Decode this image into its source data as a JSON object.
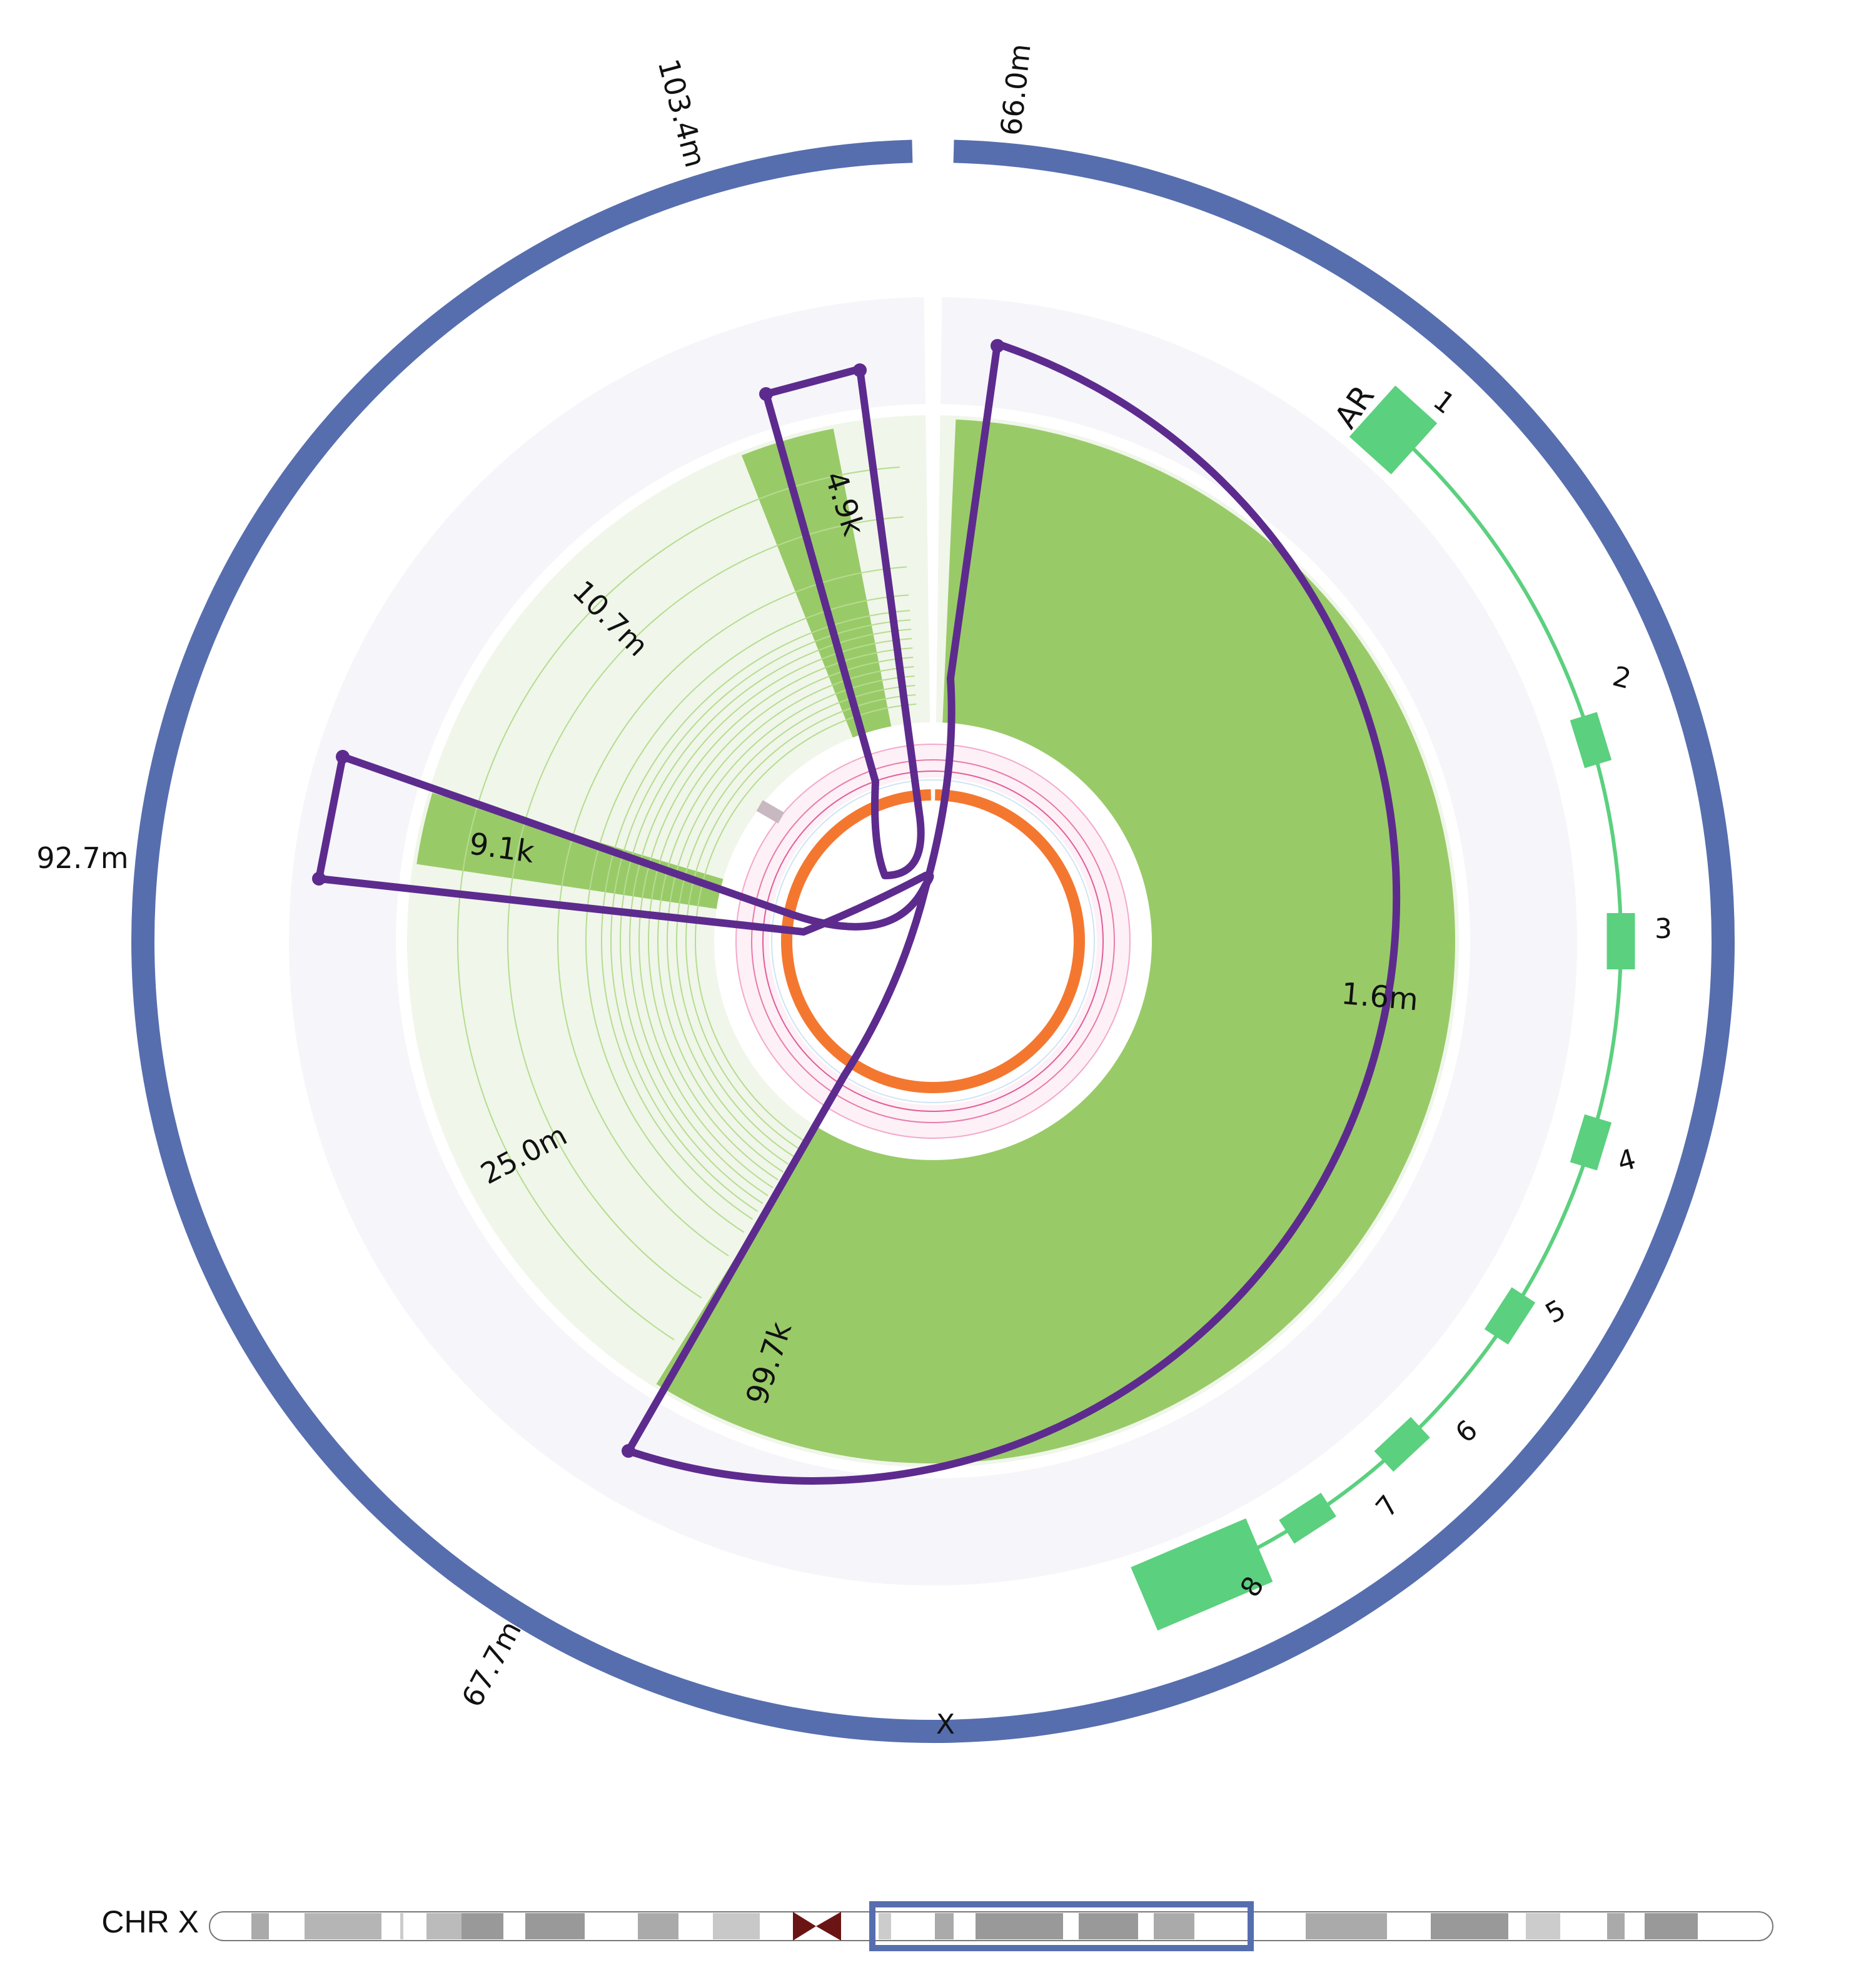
{
  "chromosome": {
    "name": "X",
    "ideogram_label": "CHR X"
  },
  "outer_labels": [
    "66.0m",
    "103.4m",
    "92.7m",
    "67.7m"
  ],
  "segment_labels": [
    "1.6m",
    "99.7k",
    "9.1k",
    "4.9k"
  ],
  "grid_labels": [
    "10.7m",
    "25.0m"
  ],
  "gene": {
    "name": "AR",
    "exons": [
      "1",
      "2",
      "3",
      "4",
      "5",
      "6",
      "7",
      "8"
    ]
  },
  "colors": {
    "chromosome_ring": "#566eae",
    "background_ring": "#f5f5fa",
    "segment_fill": "#99ca68",
    "segment_background": "#f0f6ea",
    "gridline": "#b6dc8f",
    "junction_path": "#5d2b8e",
    "exon": "#5bd07f",
    "copy_number_ring": "#f47730",
    "ideogram_highlight": "#566eae",
    "centromere": "#6b1414"
  }
}
